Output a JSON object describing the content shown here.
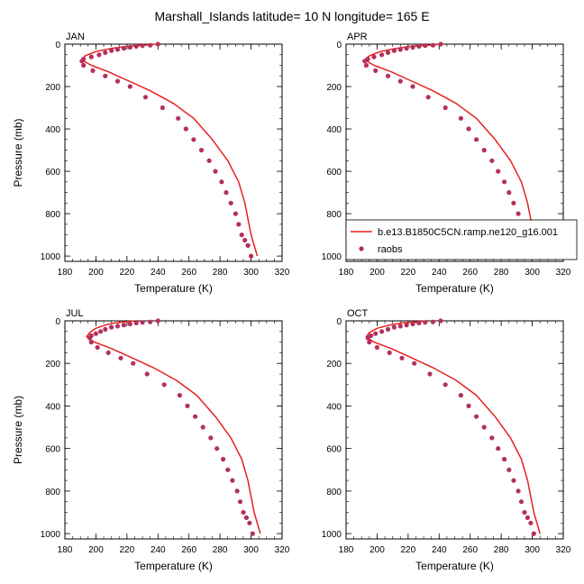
{
  "page_title": "Marshall_Islands  latitude= 10 N longitude= 165 E",
  "legend": {
    "line_label": "b.e13.B1850C5CN.ramp.ne120_g16.001",
    "dot_label": "raobs"
  },
  "colors": {
    "model_line": "#e8201e",
    "obs_dot": "#b5305c"
  },
  "chart_data": [
    {
      "type": "line",
      "panel_label": "JAN",
      "xlabel": "Temperature (K)",
      "ylabel": "Pressure (mb)",
      "xlim": [
        180,
        320
      ],
      "ylim": [
        0,
        1025
      ],
      "y_reversed": true,
      "x_ticks": [
        180,
        200,
        220,
        240,
        260,
        280,
        300,
        320
      ],
      "y_ticks": [
        0,
        200,
        400,
        600,
        800,
        1000
      ],
      "series": [
        {
          "name": "b.e13.B1850C5CN.ramp.ne120_g16.001",
          "style": "line",
          "x": [
            240,
            230,
            220,
            210,
            200,
            193,
            191,
            197,
            208,
            220,
            235,
            250,
            263,
            275,
            285,
            292,
            296,
            300,
            304
          ],
          "y": [
            0,
            5,
            10,
            20,
            35,
            55,
            75,
            100,
            130,
            170,
            220,
            280,
            350,
            450,
            550,
            650,
            750,
            900,
            1000
          ]
        },
        {
          "name": "raobs",
          "style": "scatter",
          "x": [
            240,
            235,
            230,
            226,
            222,
            218,
            214,
            210,
            206,
            202,
            197,
            192,
            191,
            192,
            198,
            206,
            214,
            222,
            232,
            243,
            253,
            258,
            263,
            268,
            273,
            277,
            281,
            284,
            287,
            290,
            292,
            294,
            296,
            298,
            300
          ],
          "y": [
            0,
            5,
            7,
            10,
            15,
            20,
            25,
            30,
            40,
            50,
            60,
            70,
            80,
            100,
            125,
            150,
            175,
            200,
            250,
            300,
            350,
            400,
            450,
            500,
            550,
            600,
            650,
            700,
            750,
            800,
            850,
            900,
            925,
            950,
            1000
          ]
        }
      ]
    },
    {
      "type": "line",
      "panel_label": "APR",
      "xlabel": "Temperature (K)",
      "ylabel": "",
      "xlim": [
        180,
        320
      ],
      "ylim": [
        0,
        1025
      ],
      "y_reversed": true,
      "x_ticks": [
        180,
        200,
        220,
        240,
        260,
        280,
        300,
        320
      ],
      "y_ticks": [
        0,
        200,
        400,
        600,
        800,
        1000
      ],
      "series": [
        {
          "name": "b.e13.B1850C5CN.ramp.ne120_g16.001",
          "style": "line",
          "x": [
            242,
            232,
            222,
            212,
            202,
            195,
            192,
            198,
            209,
            221,
            236,
            251,
            264,
            276,
            286,
            293,
            297,
            301,
            305
          ],
          "y": [
            0,
            5,
            10,
            20,
            35,
            55,
            75,
            100,
            130,
            170,
            220,
            280,
            350,
            450,
            550,
            650,
            750,
            900,
            1000
          ]
        },
        {
          "name": "raobs",
          "style": "scatter",
          "x": [
            241,
            236,
            231,
            227,
            223,
            219,
            215,
            211,
            207,
            203,
            198,
            194,
            192,
            193,
            199,
            207,
            215,
            223,
            233,
            244,
            254,
            259,
            264,
            269,
            274,
            278,
            282,
            285,
            288,
            291,
            293,
            295,
            297,
            299,
            301
          ],
          "y": [
            0,
            5,
            7,
            10,
            15,
            20,
            25,
            30,
            40,
            50,
            60,
            70,
            80,
            100,
            125,
            150,
            175,
            200,
            250,
            300,
            350,
            400,
            450,
            500,
            550,
            600,
            650,
            700,
            750,
            800,
            850,
            900,
            925,
            950,
            1000
          ]
        }
      ]
    },
    {
      "type": "line",
      "panel_label": "JUL",
      "xlabel": "Temperature (K)",
      "ylabel": "Pressure (mb)",
      "xlim": [
        180,
        320
      ],
      "ylim": [
        0,
        1025
      ],
      "y_reversed": true,
      "x_ticks": [
        180,
        200,
        220,
        240,
        260,
        280,
        300,
        320
      ],
      "y_ticks": [
        0,
        200,
        400,
        600,
        800,
        1000
      ],
      "series": [
        {
          "name": "b.e13.B1850C5CN.ramp.ne120_g16.001",
          "style": "line",
          "x": [
            225,
            218,
            212,
            206,
            200,
            196,
            194,
            199,
            210,
            222,
            237,
            252,
            265,
            277,
            287,
            294,
            298,
            302,
            306
          ],
          "y": [
            0,
            5,
            10,
            20,
            35,
            55,
            75,
            100,
            130,
            170,
            220,
            280,
            350,
            450,
            550,
            650,
            750,
            900,
            1000
          ]
        },
        {
          "name": "raobs",
          "style": "scatter",
          "x": [
            240,
            235,
            230,
            226,
            222,
            218,
            214,
            210,
            206,
            203,
            200,
            197,
            196,
            197,
            201,
            208,
            216,
            224,
            233,
            244,
            254,
            259,
            264,
            269,
            274,
            278,
            282,
            285,
            288,
            291,
            293,
            295,
            297,
            299,
            301
          ],
          "y": [
            0,
            5,
            7,
            10,
            15,
            20,
            25,
            30,
            40,
            50,
            60,
            70,
            80,
            100,
            125,
            150,
            175,
            200,
            250,
            300,
            350,
            400,
            450,
            500,
            550,
            600,
            650,
            700,
            750,
            800,
            850,
            900,
            925,
            950,
            1000
          ]
        }
      ]
    },
    {
      "type": "line",
      "panel_label": "OCT",
      "xlabel": "Temperature (K)",
      "ylabel": "",
      "xlim": [
        180,
        320
      ],
      "ylim": [
        0,
        1025
      ],
      "y_reversed": true,
      "x_ticks": [
        180,
        200,
        220,
        240,
        260,
        280,
        300,
        320
      ],
      "y_ticks": [
        0,
        200,
        400,
        600,
        800,
        1000
      ],
      "series": [
        {
          "name": "b.e13.B1850C5CN.ramp.ne120_g16.001",
          "style": "line",
          "x": [
            232,
            224,
            216,
            208,
            200,
            195,
            193,
            198,
            209,
            221,
            236,
            251,
            264,
            276,
            286,
            293,
            297,
            301,
            305
          ],
          "y": [
            0,
            5,
            10,
            20,
            35,
            55,
            75,
            100,
            130,
            170,
            220,
            280,
            350,
            450,
            550,
            650,
            750,
            900,
            1000
          ]
        },
        {
          "name": "raobs",
          "style": "scatter",
          "x": [
            241,
            236,
            231,
            227,
            223,
            219,
            215,
            211,
            207,
            203,
            199,
            196,
            194,
            195,
            200,
            208,
            216,
            224,
            234,
            244,
            254,
            259,
            264,
            269,
            274,
            278,
            282,
            285,
            288,
            291,
            293,
            295,
            297,
            299,
            301
          ],
          "y": [
            0,
            5,
            7,
            10,
            15,
            20,
            25,
            30,
            40,
            50,
            60,
            70,
            80,
            100,
            125,
            150,
            175,
            200,
            250,
            300,
            350,
            400,
            450,
            500,
            550,
            600,
            650,
            700,
            750,
            800,
            850,
            900,
            925,
            950,
            1000
          ]
        }
      ]
    }
  ]
}
